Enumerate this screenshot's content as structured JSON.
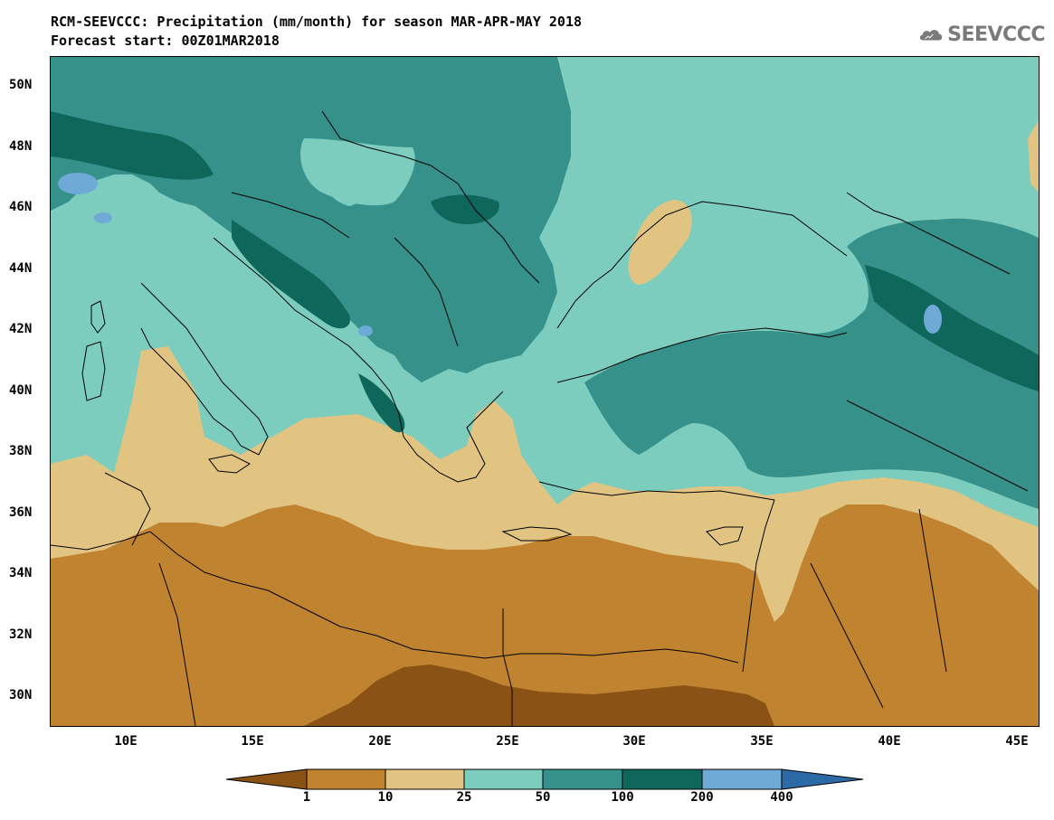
{
  "header": {
    "title_line1": "RCM-SEEVCCC: Precipitation (mm/month) for season MAR-APR-MAY 2018",
    "title_line2": "Forecast start: 00Z01MAR2018"
  },
  "logo": {
    "text": "SEEVCCC",
    "icon": "cloud-logo-icon"
  },
  "axes": {
    "lat_labels": [
      "50N",
      "48N",
      "46N",
      "44N",
      "42N",
      "40N",
      "38N",
      "36N",
      "34N",
      "32N",
      "30N"
    ],
    "lon_labels": [
      "10E",
      "15E",
      "20E",
      "25E",
      "30E",
      "35E",
      "40E",
      "45E"
    ]
  },
  "legend": {
    "labels": [
      "1",
      "10",
      "25",
      "50",
      "100",
      "200",
      "400"
    ],
    "colors": [
      "#8a5215",
      "#c0832f",
      "#e1c482",
      "#7dcdbf",
      "#359189",
      "#0f675c",
      "#6fa9d6",
      "#2c6aa6"
    ]
  },
  "palette": {
    "desert_dark": "#8a5215",
    "desert": "#c0832f",
    "dry": "#e1c482",
    "light_teal": "#7dcdbf",
    "teal": "#359189",
    "dark_teal": "#0f675c",
    "blue": "#6fa9d6"
  }
}
